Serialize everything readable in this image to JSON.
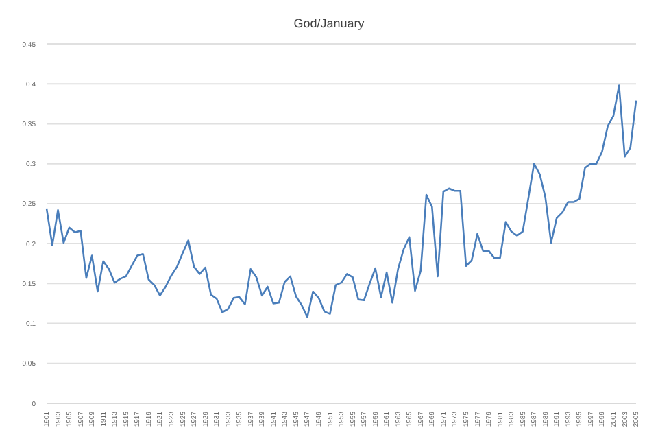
{
  "chart_data": {
    "type": "line",
    "title": "God/January",
    "categories": [
      "1901",
      null,
      "1903",
      null,
      "1905",
      null,
      "1907",
      null,
      "1909",
      null,
      "1911",
      null,
      "1913",
      null,
      "1915",
      null,
      "1917",
      null,
      "1919",
      null,
      "1921",
      null,
      "1923",
      null,
      "1925",
      null,
      "1927",
      null,
      "1929",
      null,
      "1931",
      null,
      "1933",
      null,
      "1935",
      null,
      "1937",
      null,
      "1939",
      null,
      "1941",
      null,
      "1943",
      null,
      "1945",
      null,
      "1947",
      null,
      "1949",
      null,
      "1951",
      null,
      "1953",
      null,
      "1955",
      null,
      "1957",
      null,
      "1959",
      null,
      "1961",
      null,
      "1963",
      null,
      "1965",
      null,
      "1967",
      null,
      "1969",
      null,
      "1971",
      null,
      "1973",
      null,
      "1975",
      null,
      "1977",
      null,
      "1979",
      null,
      "1981",
      null,
      "1983",
      null,
      "1985",
      null,
      "1987",
      null,
      "1989",
      null,
      "1991",
      null,
      "1993",
      null,
      "1995",
      null,
      "1997",
      null,
      "1999",
      null,
      "2001",
      null,
      "2003",
      null,
      "2005"
    ],
    "series": [
      {
        "color": "#4a7ebb",
        "values": [
          0.244,
          0.198,
          0.242,
          0.201,
          0.22,
          0.214,
          0.216,
          0.157,
          0.185,
          0.14,
          0.178,
          0.168,
          0.151,
          0.156,
          0.159,
          0.172,
          0.185,
          0.187,
          0.155,
          0.148,
          0.135,
          0.146,
          0.16,
          0.171,
          0.188,
          0.204,
          0.171,
          0.162,
          0.17,
          0.136,
          0.131,
          0.114,
          0.118,
          0.132,
          0.133,
          0.124,
          0.168,
          0.158,
          0.135,
          0.146,
          0.125,
          0.126,
          0.152,
          0.159,
          0.134,
          0.123,
          0.108,
          0.14,
          0.132,
          0.115,
          0.112,
          0.148,
          0.151,
          0.162,
          0.158,
          0.13,
          0.129,
          0.15,
          0.169,
          0.133,
          0.164,
          0.126,
          0.168,
          0.193,
          0.208,
          0.141,
          0.166,
          0.261,
          0.246,
          0.159,
          0.265,
          0.269,
          0.266,
          0.266,
          0.172,
          0.179,
          0.212,
          0.191,
          0.191,
          0.182,
          0.182,
          0.227,
          0.215,
          0.21,
          0.215,
          0.257,
          0.3,
          0.287,
          0.258,
          0.201,
          0.232,
          0.239,
          0.252,
          0.252,
          0.256,
          0.295,
          0.3,
          0.3,
          0.315,
          0.347,
          0.36,
          0.398,
          0.309,
          0.32,
          0.379
        ]
      }
    ],
    "ylim": [
      0,
      0.45
    ],
    "yticks": [
      0,
      0.05,
      0.1,
      0.15,
      0.2,
      0.25,
      0.3,
      0.35,
      0.4,
      0.45
    ],
    "grid": "y",
    "legend": false,
    "marker": "none",
    "line_style": "solid"
  }
}
